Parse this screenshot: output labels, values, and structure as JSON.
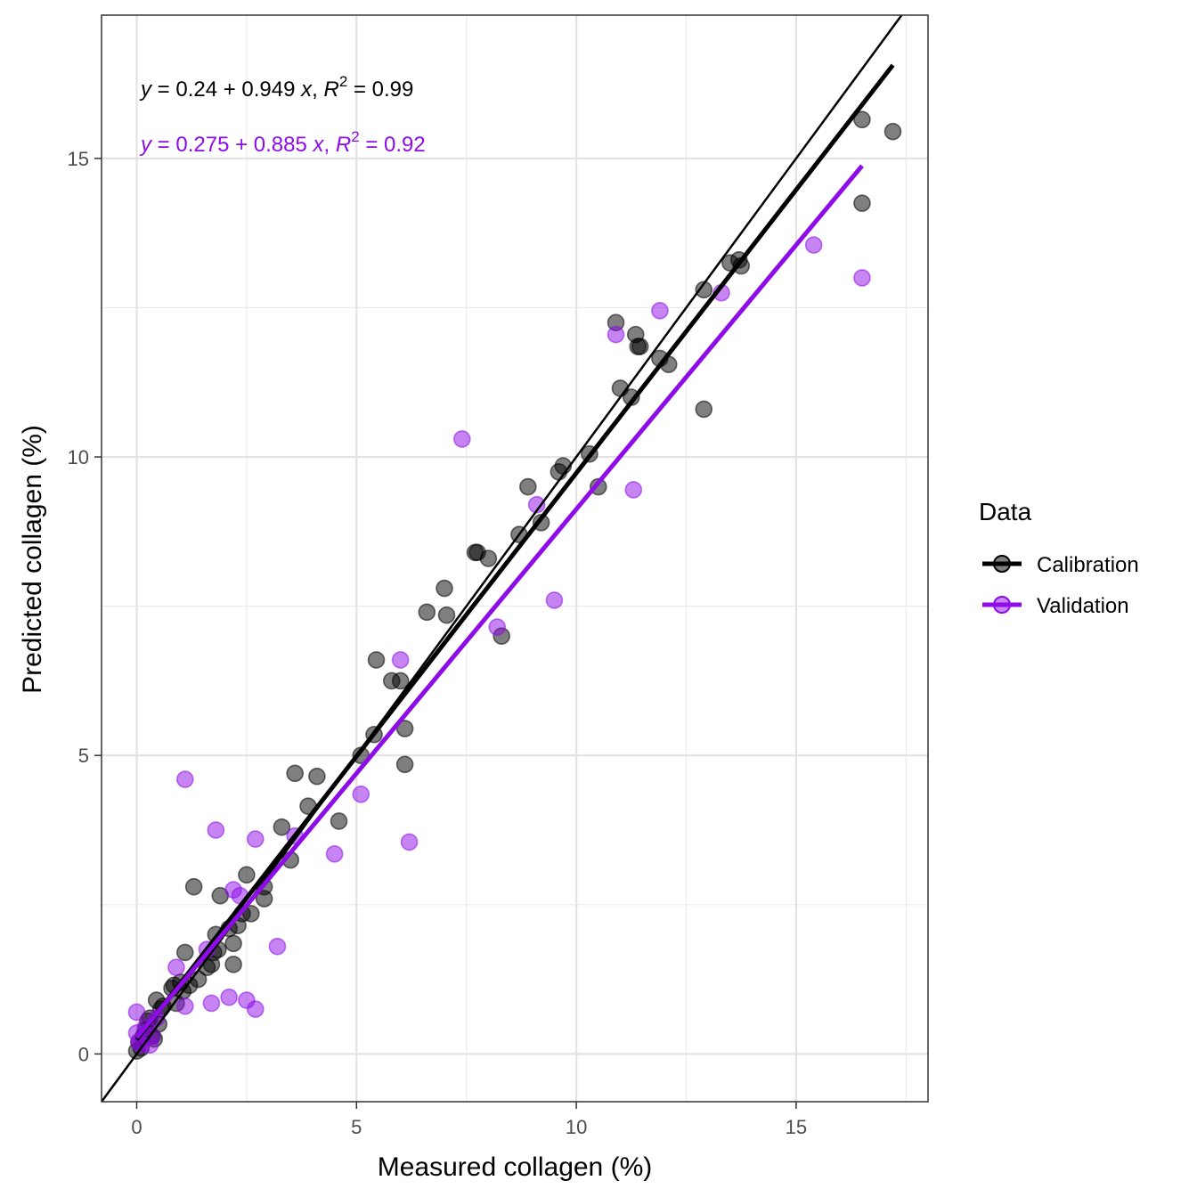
{
  "chart_data": {
    "type": "scatter",
    "xlabel": "Measured collagen (%)",
    "ylabel": "Predicted collagen (%)",
    "xlim": [
      -0.8,
      18.0
    ],
    "ylim": [
      -0.8,
      17.4
    ],
    "x_ticks": [
      0,
      5,
      10,
      15
    ],
    "y_ticks": [
      0,
      5,
      10,
      15
    ],
    "x_tick_labels": [
      "0",
      "5",
      "10",
      "15"
    ],
    "y_tick_labels": [
      "0",
      "5",
      "10",
      "15"
    ],
    "grid": true,
    "legend": {
      "title": "Data",
      "position": "right",
      "entries": [
        "Calibration",
        "Validation"
      ]
    },
    "reference_line": {
      "type": "identity",
      "slope": 1,
      "intercept": 0,
      "color": "#000000"
    },
    "series": [
      {
        "name": "Calibration",
        "color": "#000000",
        "equation": {
          "y": "y",
          "intercept": "0.24",
          "plus": "+",
          "slope": "0.949",
          "x": "x",
          "sep": ",",
          "r": "R",
          "r_exp": "2",
          "eq": "=",
          "r2": "0.99"
        },
        "fit": {
          "intercept": 0.24,
          "slope": 0.949,
          "x_range": [
            0,
            17.2
          ]
        },
        "points": [
          [
            0.0,
            0.05
          ],
          [
            0.05,
            0.2
          ],
          [
            0.1,
            0.1
          ],
          [
            0.15,
            0.3
          ],
          [
            0.2,
            0.4
          ],
          [
            0.25,
            0.55
          ],
          [
            0.3,
            0.6
          ],
          [
            0.35,
            0.3
          ],
          [
            0.4,
            0.25
          ],
          [
            0.45,
            0.9
          ],
          [
            0.5,
            0.5
          ],
          [
            0.55,
            0.75
          ],
          [
            0.6,
            0.8
          ],
          [
            0.8,
            1.1
          ],
          [
            0.85,
            1.15
          ],
          [
            0.9,
            0.85
          ],
          [
            1.0,
            1.2
          ],
          [
            1.05,
            1.05
          ],
          [
            1.1,
            1.7
          ],
          [
            1.2,
            1.15
          ],
          [
            1.3,
            2.8
          ],
          [
            1.4,
            1.25
          ],
          [
            1.6,
            1.45
          ],
          [
            1.7,
            1.5
          ],
          [
            1.75,
            1.7
          ],
          [
            1.8,
            2.0
          ],
          [
            1.85,
            1.75
          ],
          [
            1.9,
            2.65
          ],
          [
            2.1,
            2.1
          ],
          [
            2.2,
            1.85
          ],
          [
            2.2,
            1.5
          ],
          [
            2.3,
            2.15
          ],
          [
            2.4,
            2.35
          ],
          [
            2.5,
            3.0
          ],
          [
            2.6,
            2.35
          ],
          [
            2.9,
            2.8
          ],
          [
            2.9,
            2.6
          ],
          [
            3.3,
            3.8
          ],
          [
            3.5,
            3.25
          ],
          [
            3.6,
            4.7
          ],
          [
            3.9,
            4.15
          ],
          [
            4.1,
            4.65
          ],
          [
            4.6,
            3.9
          ],
          [
            5.1,
            5.0
          ],
          [
            5.4,
            5.35
          ],
          [
            5.45,
            6.6
          ],
          [
            5.8,
            6.25
          ],
          [
            6.0,
            6.25
          ],
          [
            6.1,
            4.85
          ],
          [
            6.1,
            5.45
          ],
          [
            6.6,
            7.4
          ],
          [
            7.0,
            7.8
          ],
          [
            7.05,
            7.35
          ],
          [
            7.7,
            8.4
          ],
          [
            7.75,
            8.4
          ],
          [
            8.0,
            8.3
          ],
          [
            8.3,
            7.0
          ],
          [
            8.7,
            8.7
          ],
          [
            8.9,
            9.5
          ],
          [
            9.2,
            8.9
          ],
          [
            9.6,
            9.75
          ],
          [
            9.7,
            9.85
          ],
          [
            10.3,
            10.05
          ],
          [
            10.5,
            9.5
          ],
          [
            10.9,
            12.25
          ],
          [
            11.0,
            11.15
          ],
          [
            11.25,
            11.0
          ],
          [
            11.35,
            12.05
          ],
          [
            11.4,
            11.85
          ],
          [
            11.45,
            11.85
          ],
          [
            11.9,
            11.65
          ],
          [
            12.1,
            11.55
          ],
          [
            12.9,
            10.8
          ],
          [
            12.9,
            12.8
          ],
          [
            13.5,
            13.25
          ],
          [
            13.7,
            13.3
          ],
          [
            13.75,
            13.2
          ],
          [
            16.5,
            15.65
          ],
          [
            16.5,
            14.25
          ],
          [
            17.2,
            15.45
          ]
        ]
      },
      {
        "name": "Validation",
        "color": "#8d0ce8",
        "equation": {
          "y": "y",
          "intercept": "0.275",
          "plus": "+",
          "slope": "0.885",
          "x": "x",
          "sep": ",",
          "r": "R",
          "r_exp": "2",
          "eq": "=",
          "r2": "0.92"
        },
        "fit": {
          "intercept": 0.275,
          "slope": 0.885,
          "x_range": [
            0,
            16.5
          ]
        },
        "points": [
          [
            0.0,
            0.7
          ],
          [
            0.0,
            0.35
          ],
          [
            0.05,
            0.2
          ],
          [
            0.1,
            0.15
          ],
          [
            0.2,
            0.45
          ],
          [
            0.3,
            0.15
          ],
          [
            0.35,
            0.3
          ],
          [
            0.45,
            0.6
          ],
          [
            0.9,
            1.45
          ],
          [
            1.1,
            4.6
          ],
          [
            1.1,
            0.8
          ],
          [
            1.6,
            1.75
          ],
          [
            1.7,
            0.85
          ],
          [
            1.8,
            3.75
          ],
          [
            2.1,
            0.95
          ],
          [
            2.2,
            2.75
          ],
          [
            2.35,
            2.65
          ],
          [
            2.5,
            0.9
          ],
          [
            2.7,
            3.6
          ],
          [
            2.7,
            0.75
          ],
          [
            3.2,
            1.8
          ],
          [
            3.6,
            3.65
          ],
          [
            4.5,
            3.35
          ],
          [
            5.1,
            4.35
          ],
          [
            6.0,
            6.6
          ],
          [
            6.2,
            3.55
          ],
          [
            7.4,
            10.3
          ],
          [
            8.2,
            7.15
          ],
          [
            9.1,
            9.2
          ],
          [
            9.5,
            7.6
          ],
          [
            10.9,
            12.05
          ],
          [
            11.3,
            9.45
          ],
          [
            11.9,
            12.45
          ],
          [
            13.3,
            12.75
          ],
          [
            15.4,
            13.55
          ],
          [
            16.5,
            13.0
          ]
        ]
      }
    ]
  }
}
